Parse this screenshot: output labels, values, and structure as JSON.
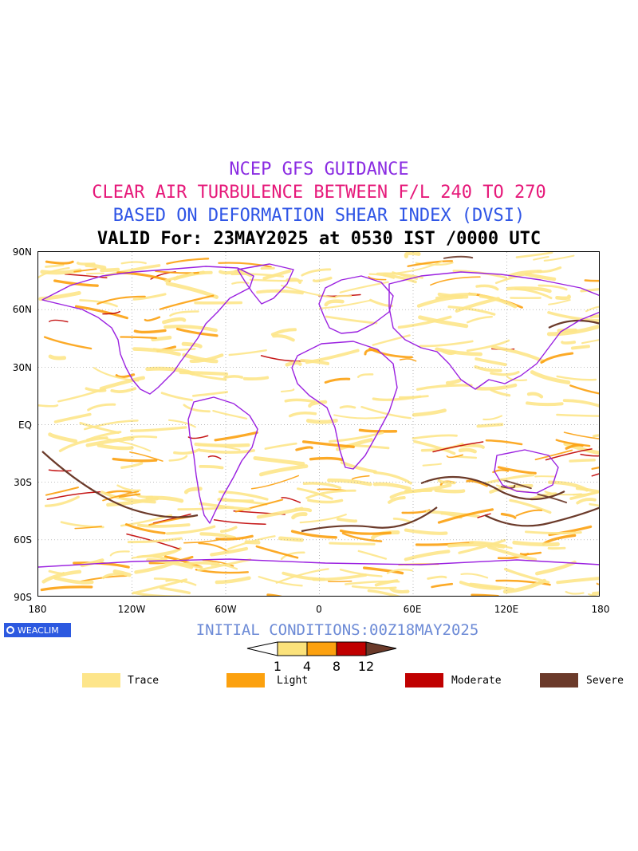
{
  "titles": {
    "line1": "NCEP GFS GUIDANCE",
    "line2": "CLEAR AIR TURBULENCE BETWEEN F/L 240 TO 270",
    "line3": "BASED ON DEFORMATION SHEAR INDEX (DVSI)",
    "line4": "VALID For: 23MAY2025 at 0530 IST /0000 UTC"
  },
  "title_colors": {
    "line1": "#8a2be2",
    "line2": "#e6197a",
    "line3": "#2f55e6",
    "line4": "#000000"
  },
  "axes": {
    "lat_labels": [
      "90N",
      "60N",
      "30N",
      "EQ",
      "30S",
      "60S",
      "90S"
    ],
    "lon_labels": [
      "180",
      "120W",
      "60W",
      "0",
      "60E",
      "120E",
      "180"
    ]
  },
  "brand": {
    "label": "WEACLIM",
    "icon": "circle-logo-icon"
  },
  "initial_conditions": "INITIAL CONDITIONS:00Z18MAY2025",
  "colorbar": {
    "ticks": [
      "1",
      "4",
      "8",
      "12"
    ],
    "colors": [
      "#fbe27b",
      "#fca10f",
      "#c00000",
      "#6b3a2a"
    ]
  },
  "legend": [
    {
      "label": "Trace",
      "color": "#fde58a"
    },
    {
      "label": "Light",
      "color": "#fca10f"
    },
    {
      "label": "Moderate",
      "color": "#c00000"
    },
    {
      "label": "Severe",
      "color": "#6b3a2a"
    }
  ],
  "map_colors": {
    "coastline": "#9a20e0",
    "grid": "#9a9a9a",
    "trace": "#fde58a",
    "light": "#fca10f",
    "moderate": "#c00000",
    "severe": "#6b3a2a"
  }
}
